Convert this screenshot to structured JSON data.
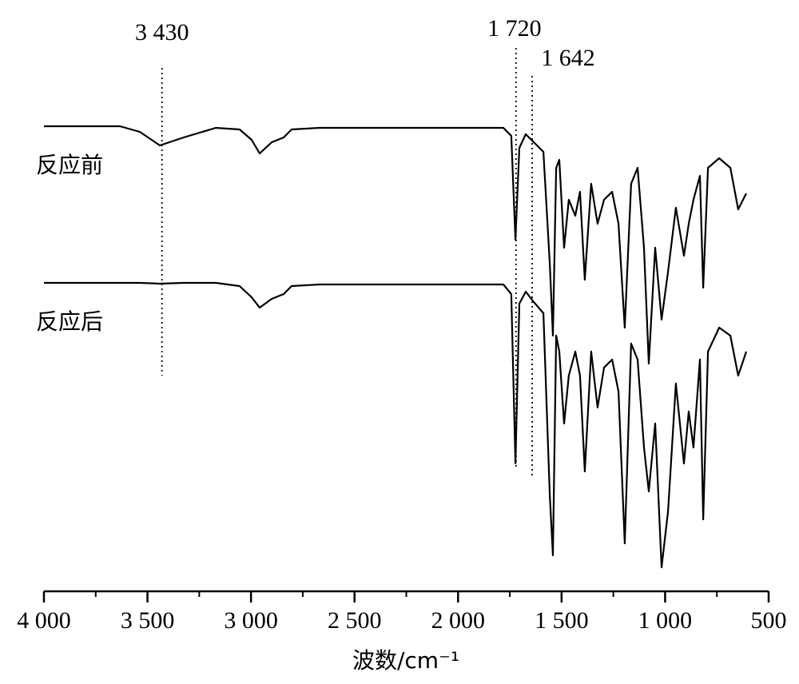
{
  "chart_data": {
    "type": "line",
    "xlabel": "波数/cm⁻¹",
    "x": [
      4000,
      3633,
      3537,
      3440,
      3325,
      3170,
      3055,
      2997,
      2958,
      2900,
      2842,
      2804,
      2669,
      1781,
      1743,
      1723,
      1704,
      1673,
      1634,
      1588,
      1557,
      1542,
      1526,
      1511,
      1488,
      1465,
      1434,
      1411,
      1388,
      1357,
      1326,
      1295,
      1256,
      1225,
      1195,
      1164,
      1133,
      1102,
      1079,
      1048,
      1017,
      986,
      948,
      909,
      886,
      863,
      832,
      816,
      793,
      739,
      685,
      647,
      608
    ],
    "series": [
      {
        "name": "反应前",
        "color": "#000000",
        "values": [
          582,
          582,
          575,
          558,
          568,
          580,
          578,
          565,
          548,
          562,
          568,
          578,
          580,
          580,
          570,
          440,
          555,
          572,
          562,
          550,
          410,
          320,
          530,
          540,
          430,
          490,
          470,
          500,
          390,
          510,
          460,
          490,
          500,
          460,
          330,
          510,
          530,
          430,
          285,
          430,
          340,
          400,
          480,
          420,
          460,
          490,
          520,
          380,
          530,
          542,
          530,
          478,
          498
        ]
      },
      {
        "name": "反应后",
        "color": "#000000",
        "values": [
          386,
          386,
          386,
          385,
          386,
          386,
          382,
          368,
          355,
          366,
          372,
          382,
          384,
          384,
          372,
          160,
          360,
          375,
          362,
          348,
          120,
          45,
          320,
          300,
          210,
          270,
          300,
          270,
          150,
          300,
          230,
          280,
          290,
          250,
          60,
          310,
          290,
          180,
          125,
          210,
          30,
          100,
          260,
          160,
          225,
          180,
          290,
          90,
          300,
          330,
          320,
          270,
          300
        ]
      }
    ],
    "annotations": [
      {
        "text": "3 430",
        "x": 3430
      },
      {
        "text": "1 720",
        "x": 1720
      },
      {
        "text": "1 642",
        "x": 1642
      }
    ],
    "xlim": [
      4000,
      500
    ],
    "xticks": [
      {
        "value": 4000,
        "label": "4 000"
      },
      {
        "value": 3500,
        "label": "3 500"
      },
      {
        "value": 3000,
        "label": "3 000"
      },
      {
        "value": 2500,
        "label": "2 500"
      },
      {
        "value": 2000,
        "label": "2 000"
      },
      {
        "value": 1500,
        "label": "1 500"
      },
      {
        "value": 1000,
        "label": "1 000"
      },
      500
    ],
    "xminor_ticks": [
      3750,
      3250,
      2750,
      2250,
      1750,
      1250,
      750
    ],
    "ylim": [
      0,
      640
    ]
  }
}
